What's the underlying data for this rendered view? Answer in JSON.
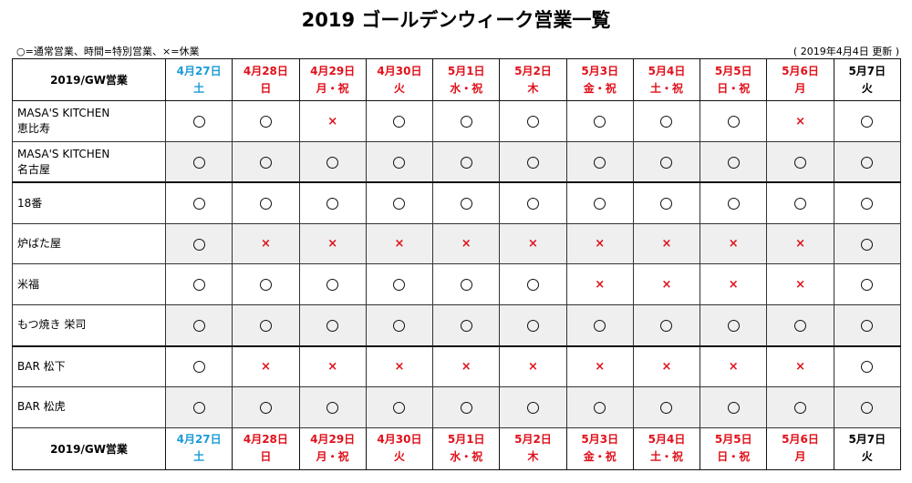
{
  "title": "2019 ゴールデンウィーク営業一覧",
  "legend": "○=通常営業、時間=特別営業、×=休業",
  "updated": "( 2019年4月4日 更新 )",
  "header_label": "2019/GW営業",
  "footer_label": "2019/GW営業",
  "ok_symbol": "○",
  "closed_symbol": "×",
  "colors": {
    "sat": "#1c9bd8",
    "holiday": "#e0101a",
    "weekday": "#000000",
    "closed": "#e0101a"
  },
  "dates": [
    {
      "date": "4月27日",
      "weekday": "土",
      "color": "blue"
    },
    {
      "date": "4月28日",
      "weekday": "日",
      "color": "red"
    },
    {
      "date": "4月29日",
      "weekday": "月・祝",
      "color": "red"
    },
    {
      "date": "4月30日",
      "weekday": "火",
      "color": "red"
    },
    {
      "date": "5月1日",
      "weekday": "水・祝",
      "color": "red"
    },
    {
      "date": "5月2日",
      "weekday": "木",
      "color": "red"
    },
    {
      "date": "5月3日",
      "weekday": "金・祝",
      "color": "red"
    },
    {
      "date": "5月4日",
      "weekday": "土・祝",
      "color": "red"
    },
    {
      "date": "5月5日",
      "weekday": "日・祝",
      "color": "red"
    },
    {
      "date": "5月6日",
      "weekday": "月",
      "color": "red"
    },
    {
      "date": "5月7日",
      "weekday": "火",
      "color": "black"
    }
  ],
  "stores": [
    {
      "name_line1": "MASA'S KITCHEN",
      "name_line2": "恵比寿",
      "status": [
        "o",
        "o",
        "x",
        "o",
        "o",
        "o",
        "o",
        "o",
        "o",
        "x",
        "o"
      ]
    },
    {
      "name_line1": "MASA'S KITCHEN",
      "name_line2": "名古屋",
      "status": [
        "o",
        "o",
        "o",
        "o",
        "o",
        "o",
        "o",
        "o",
        "o",
        "o",
        "o"
      ]
    },
    {
      "name_line1": "18番",
      "name_line2": "",
      "status": [
        "o",
        "o",
        "o",
        "o",
        "o",
        "o",
        "o",
        "o",
        "o",
        "o",
        "o"
      ]
    },
    {
      "name_line1": "炉ばた屋",
      "name_line2": "",
      "status": [
        "o",
        "x",
        "x",
        "x",
        "x",
        "x",
        "x",
        "x",
        "x",
        "x",
        "o"
      ]
    },
    {
      "name_line1": "米福",
      "name_line2": "",
      "status": [
        "o",
        "o",
        "o",
        "o",
        "o",
        "o",
        "x",
        "x",
        "x",
        "x",
        "o"
      ]
    },
    {
      "name_line1": "もつ焼き 栄司",
      "name_line2": "",
      "status": [
        "o",
        "o",
        "o",
        "o",
        "o",
        "o",
        "o",
        "o",
        "o",
        "o",
        "o"
      ]
    },
    {
      "name_line1": "BAR 松下",
      "name_line2": "",
      "status": [
        "o",
        "x",
        "x",
        "x",
        "x",
        "x",
        "x",
        "x",
        "x",
        "x",
        "o"
      ]
    },
    {
      "name_line1": "BAR 松虎",
      "name_line2": "",
      "status": [
        "o",
        "o",
        "o",
        "o",
        "o",
        "o",
        "o",
        "o",
        "o",
        "o",
        "o"
      ]
    }
  ]
}
